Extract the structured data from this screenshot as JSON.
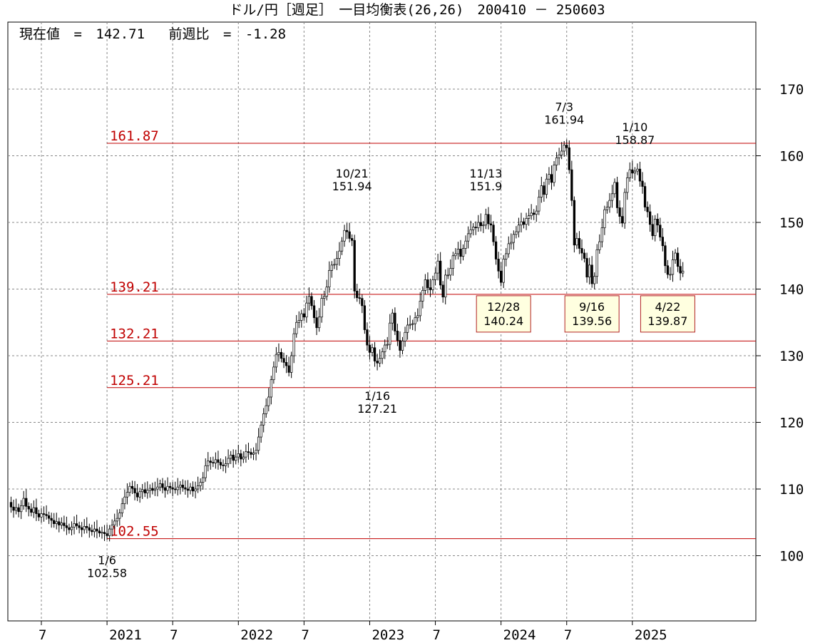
{
  "title": "ドル/円［週足］　一目均衡表(26,26)　200410 － 250603",
  "info": {
    "current_label": "現在値",
    "current_value": "142.71",
    "change_label": "前週比",
    "change_value": "-1.28"
  },
  "colors": {
    "level_line": "#c00000",
    "grid": "#888888",
    "candle": "#000000",
    "up_candle": "#ffffff",
    "box_fill": "#ffffe0",
    "box_border": "#b22222"
  },
  "chart_data": {
    "type": "candlestick",
    "ylim": [
      90,
      180
    ],
    "y_ticks": [
      100,
      110,
      120,
      130,
      140,
      150,
      160,
      170
    ],
    "x_ticks": [
      {
        "week": 0,
        "label": "7"
      },
      {
        "week": 26,
        "label": "2021"
      },
      {
        "week": 52,
        "label": "7"
      },
      {
        "week": 78,
        "label": "2022"
      },
      {
        "week": 104,
        "label": "7"
      },
      {
        "week": 130,
        "label": "2023"
      },
      {
        "week": 156,
        "label": "7"
      },
      {
        "week": 182,
        "label": "2024"
      },
      {
        "week": 208,
        "label": "7"
      },
      {
        "week": 234,
        "label": "2025"
      }
    ],
    "levels": [
      {
        "value": 161.87,
        "label": "161.87",
        "start_week": 26
      },
      {
        "value": 139.21,
        "label": "139.21",
        "start_week": 26
      },
      {
        "value": 132.21,
        "label": "132.21",
        "start_week": 26
      },
      {
        "value": 125.21,
        "label": "125.21",
        "start_week": 26
      },
      {
        "value": 102.55,
        "label": "102.55",
        "start_week": 26
      }
    ],
    "series": [
      {
        "type": "close_path",
        "points": [
          [
            -13,
            108
          ],
          [
            -12,
            107.3
          ],
          [
            -11,
            106.8
          ],
          [
            -10,
            107.2
          ],
          [
            -9,
            106.6
          ],
          [
            -8,
            107.5
          ],
          [
            -7,
            108.6
          ],
          [
            -6,
            107.4
          ],
          [
            -5,
            107
          ],
          [
            -4,
            106.5
          ],
          [
            -3,
            107.2
          ],
          [
            -2,
            106.3
          ],
          [
            -1,
            105.8
          ],
          [
            0,
            106.3
          ],
          [
            1,
            106.2
          ],
          [
            2,
            106.0
          ],
          [
            3,
            105.6
          ],
          [
            4,
            105.3
          ],
          [
            5,
            104.8
          ],
          [
            6,
            105.1
          ],
          [
            7,
            104.6
          ],
          [
            8,
            104.9
          ],
          [
            9,
            104.5
          ],
          [
            10,
            104.2
          ],
          [
            11,
            103.9
          ],
          [
            12,
            104.3
          ],
          [
            13,
            104.8
          ],
          [
            14,
            104.5
          ],
          [
            15,
            104.2
          ],
          [
            16,
            103.9
          ],
          [
            17,
            104.4
          ],
          [
            18,
            104.2
          ],
          [
            19,
            103.8
          ],
          [
            20,
            103.6
          ],
          [
            21,
            104.0
          ],
          [
            22,
            103.7
          ],
          [
            23,
            103.4
          ],
          [
            24,
            103.5
          ],
          [
            25,
            103.3
          ],
          [
            26,
            103.0
          ],
          [
            27,
            104.0
          ],
          [
            28,
            104.6
          ],
          [
            29,
            105.2
          ],
          [
            30,
            105.6
          ],
          [
            31,
            106.4
          ],
          [
            32,
            107.8
          ],
          [
            33,
            108.8
          ],
          [
            34,
            109.5
          ],
          [
            35,
            110.4
          ],
          [
            36,
            110.1
          ],
          [
            37,
            109.4
          ],
          [
            38,
            108.8
          ],
          [
            39,
            109.6
          ],
          [
            40,
            109.9
          ],
          [
            41,
            109.4
          ],
          [
            42,
            109.8
          ],
          [
            43,
            110.1
          ],
          [
            44,
            109.8
          ],
          [
            45,
            110.0
          ],
          [
            46,
            110.3
          ],
          [
            47,
            110.8
          ],
          [
            48,
            110.2
          ],
          [
            49,
            109.8
          ],
          [
            50,
            110.4
          ],
          [
            51,
            110.2
          ],
          [
            52,
            110.0
          ],
          [
            53,
            109.9
          ],
          [
            54,
            110.3
          ],
          [
            55,
            110.6
          ],
          [
            56,
            110.2
          ],
          [
            57,
            110.0
          ],
          [
            58,
            109.8
          ],
          [
            59,
            110.3
          ],
          [
            60,
            109.7
          ],
          [
            61,
            110.0
          ],
          [
            62,
            110.5
          ],
          [
            63,
            111.0
          ],
          [
            64,
            111.7
          ],
          [
            65,
            113.5
          ],
          [
            66,
            114.2
          ],
          [
            67,
            114.0
          ],
          [
            68,
            113.9
          ],
          [
            69,
            114.4
          ],
          [
            70,
            114.0
          ],
          [
            71,
            113.6
          ],
          [
            72,
            113.5
          ],
          [
            73,
            113.8
          ],
          [
            74,
            114.6
          ],
          [
            75,
            115.1
          ],
          [
            76,
            114.3
          ],
          [
            77,
            114.8
          ],
          [
            78,
            115.3
          ],
          [
            79,
            114.5
          ],
          [
            80,
            114.8
          ],
          [
            81,
            115.6
          ],
          [
            82,
            115.5
          ],
          [
            83,
            115.2
          ],
          [
            84,
            115.4
          ],
          [
            85,
            115.8
          ],
          [
            86,
            117.8
          ],
          [
            87,
            119.6
          ],
          [
            88,
            121.3
          ],
          [
            89,
            122.5
          ],
          [
            90,
            123.8
          ],
          [
            91,
            126.4
          ],
          [
            92,
            128.3
          ],
          [
            93,
            130.2
          ],
          [
            94,
            130.5
          ],
          [
            95,
            129.6
          ],
          [
            96,
            129.0
          ],
          [
            97,
            128.5
          ],
          [
            98,
            127.5
          ],
          [
            99,
            130.0
          ],
          [
            100,
            133.3
          ],
          [
            101,
            135.0
          ],
          [
            102,
            135.3
          ],
          [
            103,
            136.3
          ],
          [
            104,
            135.8
          ],
          [
            105,
            137.9
          ],
          [
            106,
            138.9
          ],
          [
            107,
            137.5
          ],
          [
            108,
            135.7
          ],
          [
            109,
            134.2
          ],
          [
            110,
            135.8
          ],
          [
            111,
            138.6
          ],
          [
            112,
            138.9
          ],
          [
            113,
            140.3
          ],
          [
            114,
            142.8
          ],
          [
            115,
            143.6
          ],
          [
            116,
            143.7
          ],
          [
            117,
            144.6
          ],
          [
            118,
            145.7
          ],
          [
            119,
            147.2
          ],
          [
            120,
            148.8
          ],
          [
            121,
            148.6
          ],
          [
            122,
            147.6
          ],
          [
            123,
            147.3
          ],
          [
            124,
            139.7
          ],
          [
            125,
            138.7
          ],
          [
            126,
            138.6
          ],
          [
            127,
            137.5
          ],
          [
            128,
            133.9
          ],
          [
            129,
            131.6
          ],
          [
            130,
            130.5
          ],
          [
            131,
            131.2
          ],
          [
            132,
            129.2
          ],
          [
            133,
            128.9
          ],
          [
            134,
            129.6
          ],
          [
            135,
            130.6
          ],
          [
            136,
            131.6
          ],
          [
            137,
            131.7
          ],
          [
            138,
            134.9
          ],
          [
            139,
            136.4
          ],
          [
            140,
            133.7
          ],
          [
            141,
            132.3
          ],
          [
            142,
            130.8
          ],
          [
            143,
            132.2
          ],
          [
            144,
            133.5
          ],
          [
            145,
            134.6
          ],
          [
            146,
            134.7
          ],
          [
            147,
            134.8
          ],
          [
            148,
            135.7
          ],
          [
            149,
            136.0
          ],
          [
            150,
            138.2
          ],
          [
            151,
            139.8
          ],
          [
            152,
            141.4
          ],
          [
            153,
            140.2
          ],
          [
            154,
            139.9
          ],
          [
            155,
            141.4
          ],
          [
            156,
            142.4
          ],
          [
            157,
            144.2
          ],
          [
            158,
            140.6
          ],
          [
            159,
            138.8
          ],
          [
            160,
            142.1
          ],
          [
            161,
            142.1
          ],
          [
            162,
            143.1
          ],
          [
            163,
            145.0
          ],
          [
            164,
            145.3
          ],
          [
            165,
            146.0
          ],
          [
            166,
            144.9
          ],
          [
            167,
            146.1
          ],
          [
            168,
            147.2
          ],
          [
            169,
            148.3
          ],
          [
            170,
            148.9
          ],
          [
            171,
            149.3
          ],
          [
            172,
            149.2
          ],
          [
            173,
            150.0
          ],
          [
            174,
            149.5
          ],
          [
            175,
            149.6
          ],
          [
            176,
            151.2
          ],
          [
            177,
            149.8
          ],
          [
            178,
            149.6
          ],
          [
            179,
            147.1
          ],
          [
            180,
            144.5
          ],
          [
            181,
            142.7
          ],
          [
            182,
            141.0
          ],
          [
            183,
            144.5
          ],
          [
            184,
            145.3
          ],
          [
            185,
            146.8
          ],
          [
            186,
            147.0
          ],
          [
            187,
            148.2
          ],
          [
            188,
            148.6
          ],
          [
            189,
            149.6
          ],
          [
            190,
            150.1
          ],
          [
            191,
            149.7
          ],
          [
            192,
            150.6
          ],
          [
            193,
            151.0
          ],
          [
            194,
            151.4
          ],
          [
            195,
            151.2
          ],
          [
            196,
            151.7
          ],
          [
            197,
            153.8
          ],
          [
            198,
            155.5
          ],
          [
            199,
            154.2
          ],
          [
            200,
            156.5
          ],
          [
            201,
            157.2
          ],
          [
            202,
            156.0
          ],
          [
            203,
            158.6
          ],
          [
            204,
            159.7
          ],
          [
            205,
            160.1
          ],
          [
            206,
            160.7
          ],
          [
            207,
            161.6
          ],
          [
            208,
            161.2
          ],
          [
            209,
            157.9
          ],
          [
            210,
            153.3
          ],
          [
            211,
            146.6
          ],
          [
            212,
            147.6
          ],
          [
            213,
            146.1
          ],
          [
            214,
            145.4
          ],
          [
            215,
            144.6
          ],
          [
            216,
            141.8
          ],
          [
            217,
            143.6
          ],
          [
            218,
            140.8
          ],
          [
            219,
            141.9
          ],
          [
            220,
            145.9
          ],
          [
            221,
            147.1
          ],
          [
            222,
            149.2
          ],
          [
            223,
            151.9
          ],
          [
            224,
            152.3
          ],
          [
            225,
            153.3
          ],
          [
            226,
            154.3
          ],
          [
            227,
            156.0
          ],
          [
            228,
            152.2
          ],
          [
            229,
            150.9
          ],
          [
            230,
            149.9
          ],
          [
            231,
            154.5
          ],
          [
            232,
            156.7
          ],
          [
            233,
            157.9
          ],
          [
            234,
            157.4
          ],
          [
            235,
            157.7
          ],
          [
            236,
            158.0
          ],
          [
            237,
            156.2
          ],
          [
            238,
            155.4
          ],
          [
            239,
            152.3
          ],
          [
            240,
            151.6
          ],
          [
            241,
            149.7
          ],
          [
            242,
            148.0
          ],
          [
            243,
            150.5
          ],
          [
            244,
            149.6
          ],
          [
            245,
            147.8
          ],
          [
            246,
            146.5
          ],
          [
            247,
            143.5
          ],
          [
            248,
            142.2
          ],
          [
            249,
            142.2
          ],
          [
            250,
            144.4
          ],
          [
            251,
            145.4
          ],
          [
            252,
            143.4
          ],
          [
            253,
            142.4
          ],
          [
            254,
            142.7
          ]
        ]
      }
    ],
    "annotations": [
      {
        "week": 26,
        "value": 102.58,
        "date": "1/6",
        "price": "102.58",
        "position": "below",
        "boxed": false
      },
      {
        "week": 123,
        "value": 151.94,
        "date": "10/21",
        "price": "151.94",
        "position": "above",
        "boxed": false
      },
      {
        "week": 133,
        "value": 127.21,
        "date": "1/16",
        "price": "127.21",
        "position": "below",
        "boxed": false
      },
      {
        "week": 176,
        "value": 151.9,
        "date": "11/13",
        "price": "151.9",
        "position": "above",
        "boxed": false
      },
      {
        "week": 183,
        "value": 140.24,
        "date": "12/28",
        "price": "140.24",
        "position": "box",
        "boxed": true
      },
      {
        "week": 207,
        "value": 161.94,
        "date": "7/3",
        "price": "161.94",
        "position": "above",
        "boxed": false
      },
      {
        "week": 218,
        "value": 139.56,
        "date": "9/16",
        "price": "139.56",
        "position": "box",
        "boxed": true
      },
      {
        "week": 235,
        "value": 158.87,
        "date": "1/10",
        "price": "158.87",
        "position": "above",
        "boxed": false
      },
      {
        "week": 248,
        "value": 139.87,
        "date": "4/22",
        "price": "139.87",
        "position": "box",
        "boxed": true
      }
    ]
  }
}
